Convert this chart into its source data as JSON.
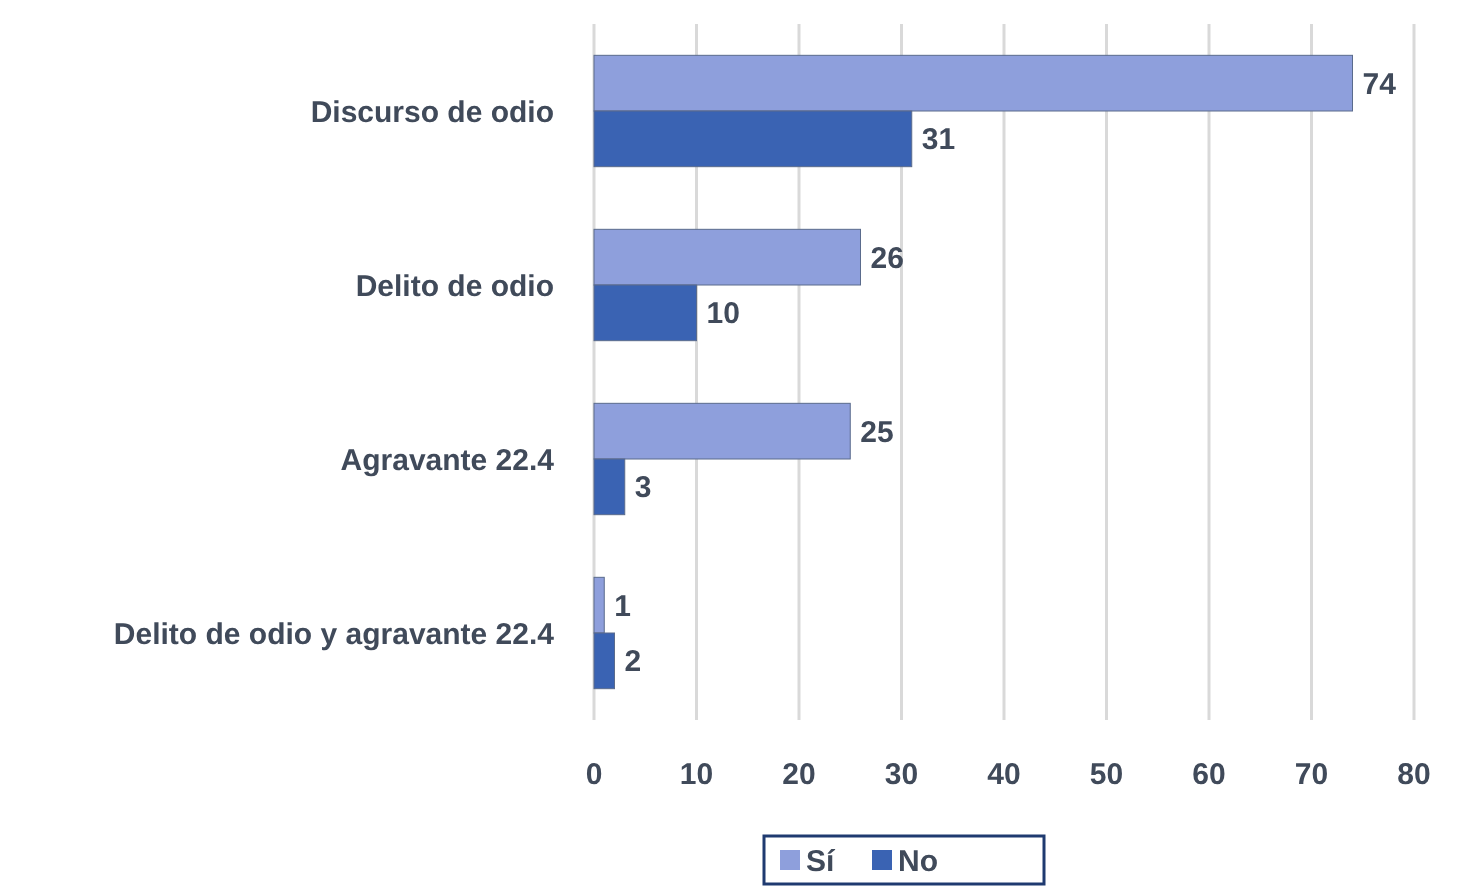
{
  "chart_data": {
    "type": "bar",
    "orientation": "horizontal",
    "categories": [
      "Discurso de odio",
      "Delito de odio",
      "Agravante 22.4",
      "Delito de odio y agravante 22.4"
    ],
    "series": [
      {
        "name": "Sí",
        "color": "#8e9fdc",
        "values": [
          74,
          26,
          25,
          1
        ]
      },
      {
        "name": "No",
        "color": "#3a63b3",
        "values": [
          31,
          10,
          3,
          2
        ]
      }
    ],
    "xlim": [
      0,
      80
    ],
    "xticks": [
      0,
      10,
      20,
      30,
      40,
      50,
      60,
      70,
      80
    ],
    "grid": "x",
    "legend": "bottom",
    "data_labels": true
  }
}
